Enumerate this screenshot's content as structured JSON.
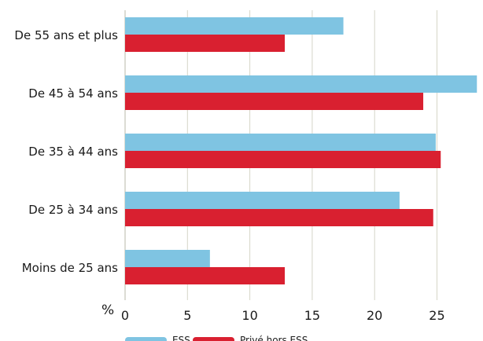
{
  "chart_data": {
    "type": "bar",
    "orientation": "horizontal",
    "categories": [
      "De 55 ans et plus",
      "De 45 à 54 ans",
      "De 35 à 44 ans",
      "De 25 à 34 ans",
      "Moins de 25 ans"
    ],
    "series": [
      {
        "name": "ESS",
        "color": "#7fc4e2",
        "values": [
          17.5,
          28.2,
          24.9,
          22.0,
          6.8
        ]
      },
      {
        "name": "Privé hors ESS",
        "color": "#d92030",
        "values": [
          12.8,
          23.9,
          25.3,
          24.7,
          12.8
        ]
      }
    ],
    "xlabel": "%",
    "xlim": [
      0,
      28.5
    ],
    "xticks": [
      0,
      5,
      10,
      15,
      20,
      25
    ],
    "grid": true,
    "legend_position": "bottom-left"
  }
}
